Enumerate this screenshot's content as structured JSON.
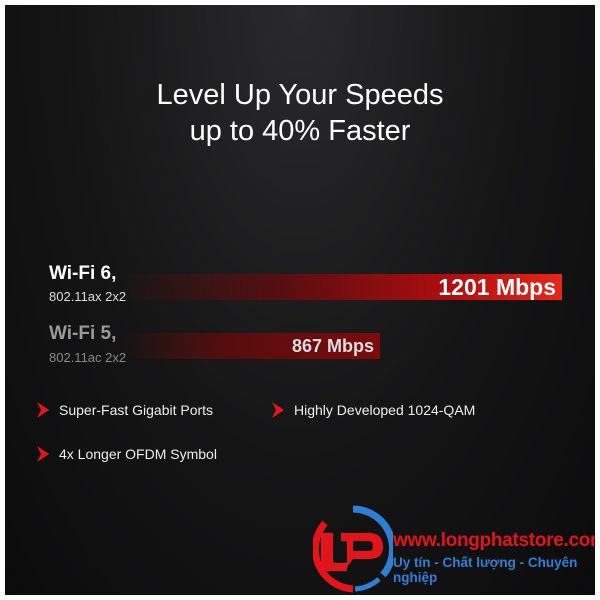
{
  "headline": {
    "line1": "Level Up Your Speeds",
    "line2": "up to 40% Faster"
  },
  "comparison": [
    {
      "name": "Wi-Fi 6,",
      "standard": "802.11ax 2x2",
      "value_label": "1201 Mbps",
      "value": 1201
    },
    {
      "name": "Wi-Fi 5,",
      "standard": "802.11ac 2x2",
      "value_label": "867 Mbps",
      "value": 867
    }
  ],
  "features": [
    "Super-Fast Gigabit Ports",
    "Highly Developed 1024-QAM",
    "4x Longer OFDM Symbol"
  ],
  "watermark": {
    "url": "www.longphatstore.com",
    "tagline": "Uy tín - Chất lượng - Chuyên nghiệp",
    "logo_text": "LP"
  },
  "colors": {
    "accent": "#e3151a",
    "background": "#151516",
    "logo_blue": "#2e7fd6"
  }
}
